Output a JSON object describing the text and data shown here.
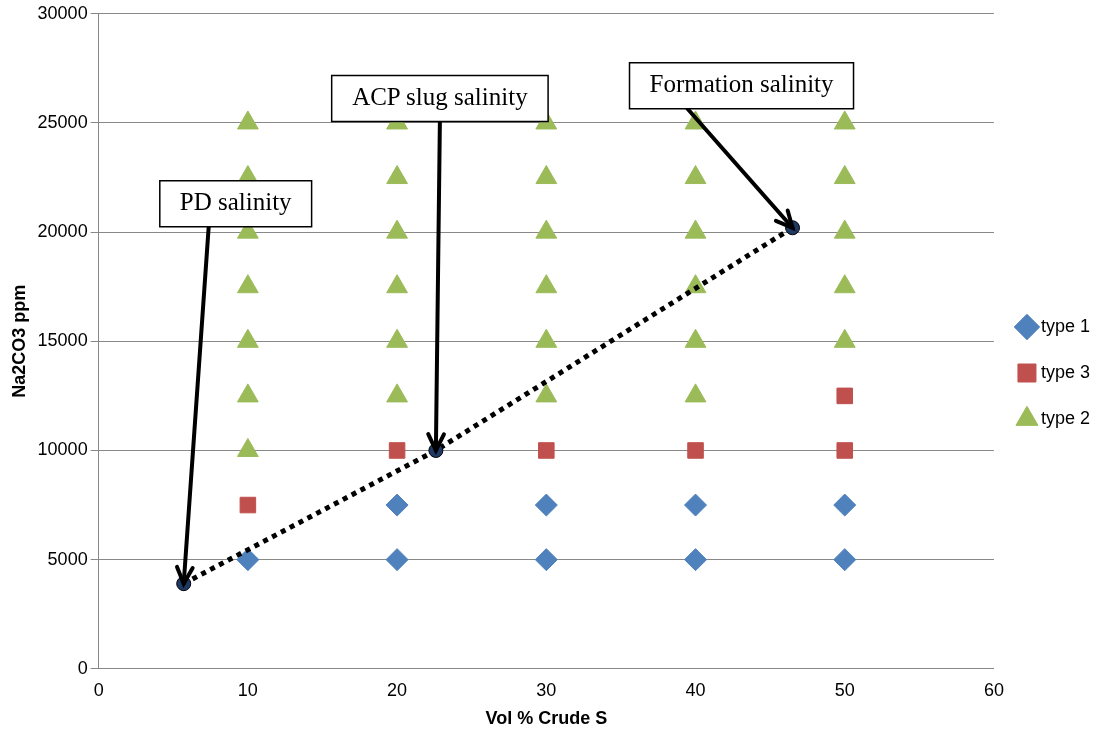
{
  "chart_data": {
    "type": "scatter",
    "xlabel": "Vol % Crude S",
    "ylabel": "Na2CO3 ppm",
    "xlim": [
      0,
      60
    ],
    "xticks": [
      0,
      10,
      20,
      30,
      40,
      50,
      60
    ],
    "ylim": [
      0,
      30000
    ],
    "yticks": [
      0,
      5000,
      10000,
      15000,
      20000,
      25000,
      30000
    ],
    "grid": "y",
    "legend": "right",
    "series": [
      {
        "name": "type 1",
        "color": "#4f81bd",
        "marker": "diamond",
        "x": [
          10,
          20,
          30,
          40,
          50,
          20,
          30,
          40,
          50
        ],
        "values": [
          5000,
          5000,
          5000,
          5000,
          5000,
          7500,
          7500,
          7500,
          7500
        ]
      },
      {
        "name": "type 3",
        "color": "#c0504d",
        "marker": "square",
        "x": [
          10,
          20,
          30,
          40,
          50,
          50
        ],
        "values": [
          7500,
          10000,
          10000,
          10000,
          10000,
          12500
        ]
      },
      {
        "name": "type 2",
        "color": "#9bbb59",
        "marker": "triangle",
        "x": [
          10,
          10,
          10,
          10,
          10,
          10,
          10,
          20,
          20,
          20,
          20,
          20,
          20,
          30,
          30,
          30,
          30,
          30,
          30,
          40,
          40,
          40,
          40,
          40,
          40,
          50,
          50,
          50,
          50,
          50
        ],
        "values": [
          10000,
          12500,
          15000,
          17500,
          20000,
          22500,
          25000,
          12500,
          15000,
          17500,
          20000,
          22500,
          25000,
          12500,
          15000,
          17500,
          20000,
          22500,
          25000,
          12500,
          15000,
          17500,
          20000,
          22500,
          25000,
          15000,
          17500,
          20000,
          22500,
          25000
        ]
      },
      {
        "type": "line",
        "color": "#1f3864",
        "marker": "circle",
        "line_style": "dotted",
        "x": [
          5.7,
          22.6,
          46.5
        ],
        "values": [
          3900,
          10000,
          20200
        ]
      }
    ],
    "annotations": [
      {
        "text": "PD salinity",
        "x": 5.7,
        "y": 3900
      },
      {
        "text": "ACP slug salinity",
        "x": 22.6,
        "y": 10000
      },
      {
        "text": "Formation salinity",
        "x": 46.5,
        "y": 20200
      }
    ]
  }
}
